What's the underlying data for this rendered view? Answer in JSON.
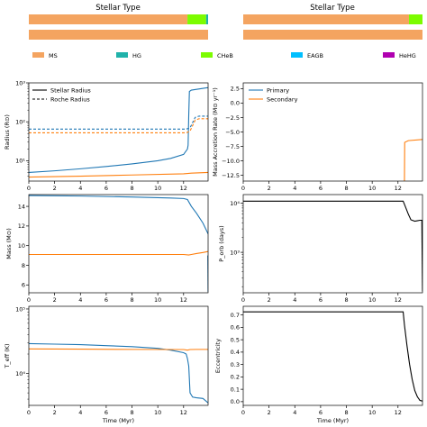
{
  "colors": {
    "MS": "#F4A460",
    "HG": "#20B2AA",
    "CHeB": "#7CFC00",
    "EAGB": "#00BFFF",
    "HeHG": "#B000B0",
    "primary": "#1f77b4",
    "secondary": "#ff7f0e",
    "stellar": "#000000"
  },
  "stellar_type": {
    "title_left": "Stellar Type",
    "title_right": "Stellar Type",
    "legend": [
      "MS",
      "HG",
      "CHeB",
      "EAGB",
      "HeHG"
    ]
  },
  "chart_data": [
    {
      "id": "stellar-type-left",
      "type": "bar",
      "title": "Stellar Type",
      "segments_top": [
        {
          "type": "MS",
          "start": 0,
          "end": 12.3
        },
        {
          "type": "CHeB",
          "start": 12.3,
          "end": 13.75
        },
        {
          "type": "HG",
          "start": 13.75,
          "end": 13.9
        }
      ],
      "segments_bottom": [
        {
          "type": "MS",
          "start": 0,
          "end": 13.9
        }
      ],
      "xlim": [
        0,
        13.9
      ]
    },
    {
      "id": "stellar-type-right",
      "type": "bar",
      "title": "Stellar Type",
      "segments_top": [
        {
          "type": "MS",
          "start": 0,
          "end": 12.85
        },
        {
          "type": "CHeB",
          "start": 12.85,
          "end": 13.9
        }
      ],
      "segments_bottom": [
        {
          "type": "MS",
          "start": 0,
          "end": 13.9
        }
      ],
      "xlim": [
        0,
        13.9
      ]
    },
    {
      "id": "radius",
      "type": "line",
      "ylabel": "Radius (R⊙)",
      "yscale": "log",
      "ylim": [
        3,
        1000
      ],
      "xlim": [
        0,
        13.9
      ],
      "xticks": [
        "0",
        "2",
        "4",
        "6",
        "8",
        "10",
        "12"
      ],
      "yticks": [
        "10¹",
        "10²",
        "10³"
      ],
      "legend": [
        "Stellar Radius",
        "Roche Radius"
      ],
      "series": [
        {
          "style": "solid-primary",
          "x": [
            0,
            2,
            4,
            6,
            8,
            10,
            11,
            12,
            12.3,
            12.35,
            12.4,
            12.45,
            12.6,
            13.8,
            13.9
          ],
          "y": [
            5.0,
            5.5,
            6.2,
            7.1,
            8.3,
            10.0,
            11.5,
            14.5,
            20,
            25,
            150,
            600,
            650,
            750,
            750
          ]
        },
        {
          "style": "solid-secondary",
          "x": [
            0,
            4,
            8,
            12,
            12.6,
            13.9
          ],
          "y": [
            3.8,
            4.0,
            4.3,
            4.6,
            4.8,
            5.0
          ]
        },
        {
          "style": "dashed-primary",
          "x": [
            0,
            12.2,
            12.5,
            12.9,
            13.2,
            13.9
          ],
          "y": [
            65,
            65,
            70,
            130,
            140,
            140
          ]
        },
        {
          "style": "dashed-secondary",
          "x": [
            0,
            12.2,
            12.5,
            12.9,
            13.2,
            13.9
          ],
          "y": [
            52,
            52,
            58,
            110,
            120,
            120
          ]
        }
      ]
    },
    {
      "id": "mass-accretion",
      "type": "line",
      "ylabel": "Mass Accretion Rate (M⊙ yr⁻¹)",
      "ylim": [
        -13.5,
        3.5
      ],
      "xlim": [
        0,
        13.9
      ],
      "xticks": [
        "0",
        "2",
        "4",
        "6",
        "8",
        "10",
        "12"
      ],
      "yticks": [
        "2.5",
        "0.0",
        "−2.5",
        "−5.0",
        "−7.5",
        "−10.0",
        "−12.5"
      ],
      "legend": [
        "Primary",
        "Secondary"
      ],
      "series": [
        {
          "name": "Primary",
          "style": "solid-primary",
          "x": [],
          "y": []
        },
        {
          "name": "Secondary",
          "style": "solid-secondary",
          "x": [
            12.5,
            12.52,
            12.8,
            13.9
          ],
          "y": [
            -13.5,
            -6.8,
            -6.5,
            -6.3
          ]
        }
      ]
    },
    {
      "id": "mass",
      "type": "line",
      "ylabel": "Mass (M⊙)",
      "ylim": [
        5.2,
        15.2
      ],
      "xlim": [
        0,
        13.9
      ],
      "xticks": [
        "0",
        "2",
        "4",
        "6",
        "8",
        "10",
        "12"
      ],
      "yticks": [
        "6",
        "8",
        "10",
        "12",
        "14"
      ],
      "series": [
        {
          "style": "solid-primary",
          "x": [
            0,
            4,
            8,
            11,
            12,
            12.3,
            12.6,
            13,
            13.5,
            13.9
          ],
          "y": [
            15.1,
            15.05,
            14.95,
            14.85,
            14.8,
            14.7,
            14.0,
            13.3,
            12.3,
            11.2
          ]
        },
        {
          "style": "solid-secondary",
          "x": [
            0,
            4,
            8,
            12,
            12.4,
            12.6,
            13,
            13.5,
            13.9
          ],
          "y": [
            9.1,
            9.1,
            9.1,
            9.1,
            9.05,
            9.1,
            9.2,
            9.3,
            9.4
          ]
        },
        {
          "style": "solid-primary",
          "x": [
            13.88,
            13.9
          ],
          "y": [
            9.0,
            5.3
          ]
        }
      ]
    },
    {
      "id": "period",
      "type": "line",
      "ylabel": "P_orb (days)",
      "yscale": "log",
      "ylim": [
        150,
        15000
      ],
      "xlim": [
        0,
        13.9
      ],
      "xticks": [
        "0",
        "2",
        "4",
        "6",
        "8",
        "10",
        "12"
      ],
      "yticks": [
        "10³",
        "10⁴"
      ],
      "series": [
        {
          "style": "solid-stellar",
          "x": [
            0,
            12.4,
            12.5,
            12.8,
            13.0,
            13.3,
            13.5,
            13.7,
            13.9
          ],
          "y": [
            11000,
            11000,
            9500,
            6000,
            4600,
            4300,
            4400,
            4500,
            4500
          ]
        },
        {
          "style": "solid-stellar",
          "x": [
            13.85,
            13.9
          ],
          "y": [
            4500,
            160
          ]
        }
      ]
    },
    {
      "id": "teff",
      "type": "line",
      "ylabel": "T_eff (K)",
      "yscale": "log",
      "ylim": [
        3200,
        110000
      ],
      "xlim": [
        0,
        13.9
      ],
      "xticks": [
        "0",
        "2",
        "4",
        "6",
        "8",
        "10",
        "12"
      ],
      "xlabel": "Time (Myr)",
      "yticks": [
        "10⁴",
        "10⁵"
      ],
      "series": [
        {
          "style": "solid-primary",
          "x": [
            0,
            2,
            4,
            6,
            8,
            10,
            11,
            12,
            12.2,
            12.3,
            12.4,
            12.5,
            12.7,
            13.0,
            13.5,
            13.9
          ],
          "y": [
            29000,
            28500,
            28000,
            27000,
            26000,
            24500,
            23000,
            21000,
            20000,
            17000,
            13000,
            5000,
            4300,
            4200,
            4100,
            3500
          ]
        },
        {
          "style": "solid-secondary",
          "x": [
            0,
            4,
            8,
            12,
            12.3,
            12.5,
            13,
            13.9
          ],
          "y": [
            24000,
            23800,
            23600,
            23500,
            23000,
            23500,
            23600,
            23600
          ]
        }
      ]
    },
    {
      "id": "eccentricity",
      "type": "line",
      "ylabel": "Eccentricity",
      "ylim": [
        -0.03,
        0.77
      ],
      "xlim": [
        0,
        13.9
      ],
      "xticks": [
        "0",
        "2",
        "4",
        "6",
        "8",
        "10",
        "12"
      ],
      "xlabel": "Time (Myr)",
      "yticks": [
        "0.0",
        "0.1",
        "0.2",
        "0.3",
        "0.4",
        "0.5",
        "0.6",
        "0.7"
      ],
      "series": [
        {
          "style": "solid-stellar",
          "x": [
            0,
            12.4,
            12.5,
            12.7,
            12.9,
            13.1,
            13.3,
            13.5,
            13.7,
            13.9
          ],
          "y": [
            0.725,
            0.725,
            0.62,
            0.45,
            0.3,
            0.18,
            0.09,
            0.04,
            0.01,
            0.005
          ]
        }
      ]
    }
  ]
}
